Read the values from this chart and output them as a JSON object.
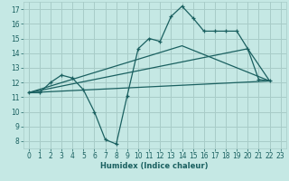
{
  "xlabel": "Humidex (Indice chaleur)",
  "xlim": [
    -0.5,
    23.5
  ],
  "ylim": [
    7.5,
    17.5
  ],
  "xticks": [
    0,
    1,
    2,
    3,
    4,
    5,
    6,
    7,
    8,
    9,
    10,
    11,
    12,
    13,
    14,
    15,
    16,
    17,
    18,
    19,
    20,
    21,
    22,
    23
  ],
  "yticks": [
    8,
    9,
    10,
    11,
    12,
    13,
    14,
    15,
    16,
    17
  ],
  "background_color": "#c5e8e4",
  "grid_color": "#a8ccc8",
  "line_color": "#1a6060",
  "line1_x": [
    0,
    1,
    2,
    3,
    4,
    5,
    6,
    7,
    8,
    9,
    10,
    11,
    12,
    13,
    14,
    15,
    16,
    17,
    18,
    19,
    20,
    21,
    22
  ],
  "line1_y": [
    11.3,
    11.3,
    12.0,
    12.5,
    12.3,
    11.5,
    10.0,
    8.1,
    7.8,
    11.1,
    14.3,
    15.0,
    14.8,
    16.5,
    17.2,
    16.4,
    15.5,
    15.5,
    15.5,
    15.5,
    14.3,
    12.2,
    12.1
  ],
  "line2_x": [
    0,
    22
  ],
  "line2_y": [
    11.3,
    12.1
  ],
  "line3_x": [
    0,
    14,
    22
  ],
  "line3_y": [
    11.3,
    14.5,
    12.1
  ],
  "line4_x": [
    0,
    20,
    22
  ],
  "line4_y": [
    11.3,
    14.3,
    12.1
  ]
}
